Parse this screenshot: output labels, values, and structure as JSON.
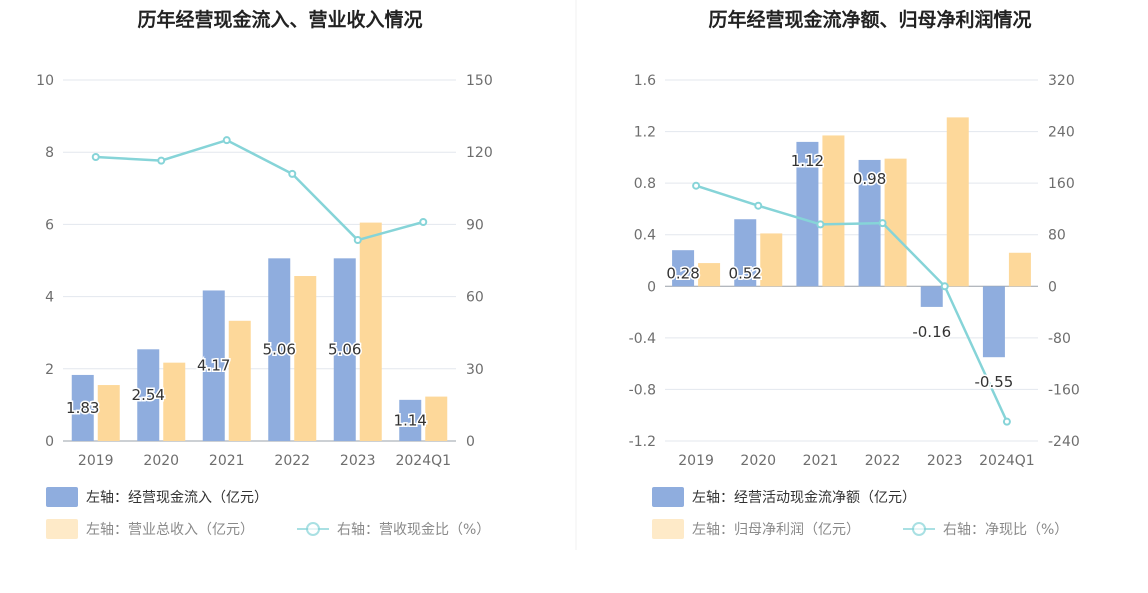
{
  "chart_data": [
    {
      "type": "bar",
      "title": "历年经营现金流入、营业收入情况",
      "categories": [
        "2019",
        "2020",
        "2021",
        "2022",
        "2023",
        "2024Q1"
      ],
      "left_axis": {
        "range": [
          0,
          10
        ],
        "ticks": [
          "0",
          "2",
          "4",
          "6",
          "8",
          "10"
        ]
      },
      "right_axis": {
        "range": [
          0,
          150
        ],
        "ticks": [
          "0",
          "30",
          "60",
          "90",
          "120",
          "150"
        ]
      },
      "series": [
        {
          "name": "左轴：经营现金流入（亿元）",
          "axis": "left",
          "kind": "bar",
          "color": "#8fadde",
          "values": [
            1.83,
            2.54,
            4.17,
            5.06,
            5.06,
            1.14
          ],
          "labels": [
            "1.83",
            "2.54",
            "4.17",
            "5.06",
            "5.06",
            "1.14"
          ]
        },
        {
          "name": "左轴：营业总收入（亿元）",
          "axis": "left",
          "kind": "bar",
          "color": "#fdd89a",
          "values": [
            1.55,
            2.17,
            3.33,
            4.57,
            6.05,
            1.23
          ]
        },
        {
          "name": "右轴：营收现金比（%）",
          "axis": "right",
          "kind": "line",
          "color": "#86d4d8",
          "values": [
            118,
            116.5,
            125,
            111,
            83.5,
            91
          ]
        }
      ]
    },
    {
      "type": "bar",
      "title": "历年经营现金流净额、归母净利润情况",
      "categories": [
        "2019",
        "2020",
        "2021",
        "2022",
        "2023",
        "2024Q1"
      ],
      "left_axis": {
        "range": [
          -1.2,
          1.6
        ],
        "ticks": [
          "-1.2",
          "-0.8",
          "-0.4",
          "0",
          "0.4",
          "0.8",
          "1.2",
          "1.6"
        ]
      },
      "right_axis": {
        "range": [
          -240,
          320
        ],
        "ticks": [
          "-240",
          "-160",
          "-80",
          "0",
          "80",
          "160",
          "240",
          "320"
        ]
      },
      "series": [
        {
          "name": "左轴：经营活动现金流净额（亿元）",
          "axis": "left",
          "kind": "bar",
          "color": "#8fadde",
          "values": [
            0.28,
            0.52,
            1.12,
            0.98,
            -0.16,
            -0.55
          ],
          "labels": [
            "0.28",
            "0.52",
            "1.12",
            "0.98",
            "-0.16",
            "-0.55"
          ]
        },
        {
          "name": "左轴：归母净利润（亿元）",
          "axis": "left",
          "kind": "bar",
          "color": "#fdd89a",
          "values": [
            0.18,
            0.41,
            1.17,
            0.99,
            1.31,
            0.26
          ]
        },
        {
          "name": "右轴：净现比（%）",
          "axis": "right",
          "kind": "line",
          "color": "#86d4d8",
          "values": [
            156,
            125,
            96,
            98,
            0,
            -210
          ]
        }
      ]
    }
  ]
}
